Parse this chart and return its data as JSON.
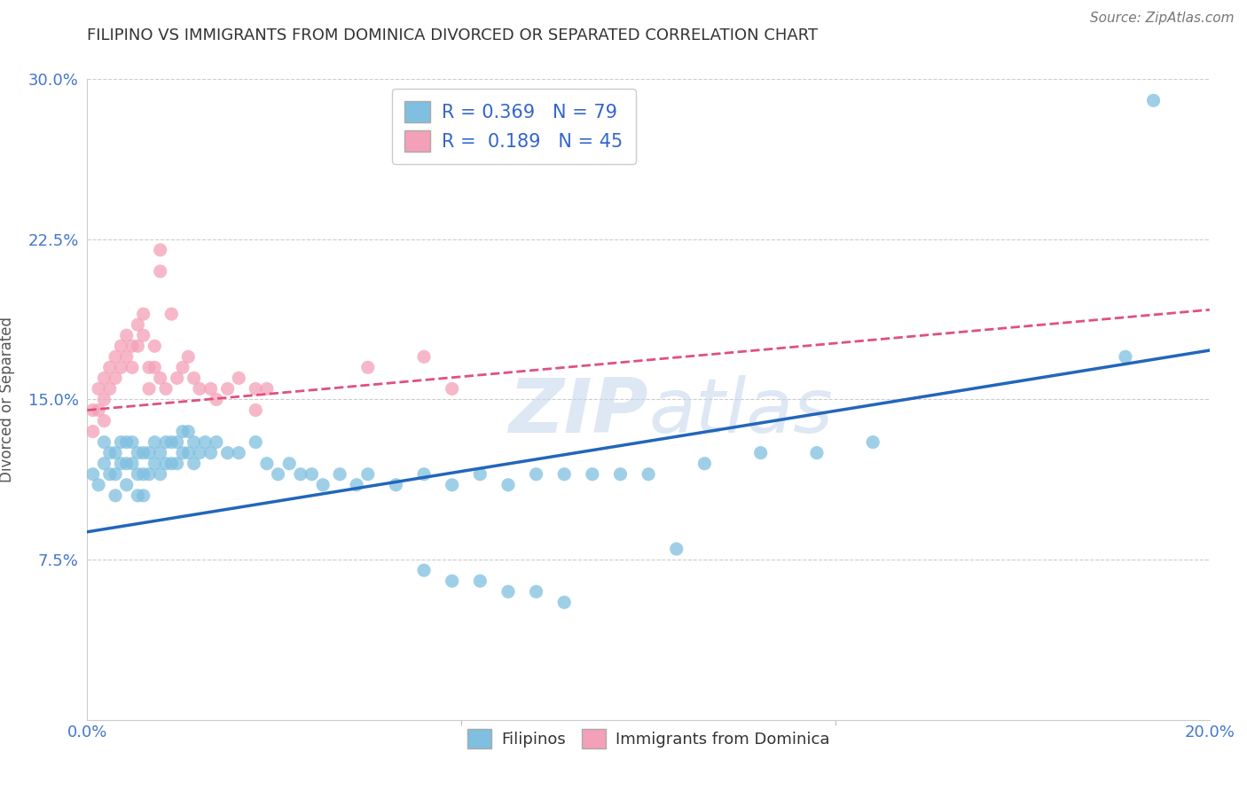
{
  "title": "FILIPINO VS IMMIGRANTS FROM DOMINICA DIVORCED OR SEPARATED CORRELATION CHART",
  "source": "Source: ZipAtlas.com",
  "ylabel": "Divorced or Separated",
  "xlabel_filipino": "Filipinos",
  "xlabel_dominica": "Immigrants from Dominica",
  "xlim": [
    0.0,
    0.2
  ],
  "ylim": [
    0.0,
    0.3
  ],
  "xticks": [
    0.0,
    0.2
  ],
  "xtick_labels": [
    "0.0%",
    "20.0%"
  ],
  "yticks": [
    0.075,
    0.15,
    0.225,
    0.3
  ],
  "ytick_labels": [
    "7.5%",
    "15.0%",
    "22.5%",
    "30.0%"
  ],
  "r_filipino": 0.369,
  "n_filipino": 79,
  "r_dominica": 0.189,
  "n_dominica": 45,
  "filipino_color": "#7fbfdf",
  "dominica_color": "#f4a0b8",
  "trendline_filipino_color": "#2266bb",
  "trendline_dominica_color": "#e05080",
  "watermark_text": "ZIP atlas",
  "watermark_color": "#c8d8ee",
  "background_color": "#ffffff",
  "grid_color": "#cccccc",
  "filipino_scatter_x": [
    0.001,
    0.002,
    0.003,
    0.003,
    0.004,
    0.004,
    0.005,
    0.005,
    0.005,
    0.006,
    0.006,
    0.007,
    0.007,
    0.007,
    0.008,
    0.008,
    0.009,
    0.009,
    0.009,
    0.01,
    0.01,
    0.01,
    0.011,
    0.011,
    0.012,
    0.012,
    0.013,
    0.013,
    0.014,
    0.014,
    0.015,
    0.015,
    0.016,
    0.016,
    0.017,
    0.017,
    0.018,
    0.018,
    0.019,
    0.019,
    0.02,
    0.021,
    0.022,
    0.023,
    0.025,
    0.027,
    0.03,
    0.032,
    0.034,
    0.036,
    0.038,
    0.04,
    0.042,
    0.045,
    0.048,
    0.05,
    0.055,
    0.06,
    0.065,
    0.07,
    0.075,
    0.08,
    0.085,
    0.09,
    0.095,
    0.1,
    0.11,
    0.12,
    0.13,
    0.14,
    0.105,
    0.06,
    0.065,
    0.07,
    0.075,
    0.08,
    0.085,
    0.185,
    0.19
  ],
  "filipino_scatter_y": [
    0.115,
    0.11,
    0.13,
    0.12,
    0.125,
    0.115,
    0.125,
    0.115,
    0.105,
    0.13,
    0.12,
    0.13,
    0.12,
    0.11,
    0.13,
    0.12,
    0.125,
    0.115,
    0.105,
    0.125,
    0.115,
    0.105,
    0.125,
    0.115,
    0.13,
    0.12,
    0.125,
    0.115,
    0.13,
    0.12,
    0.13,
    0.12,
    0.13,
    0.12,
    0.135,
    0.125,
    0.135,
    0.125,
    0.13,
    0.12,
    0.125,
    0.13,
    0.125,
    0.13,
    0.125,
    0.125,
    0.13,
    0.12,
    0.115,
    0.12,
    0.115,
    0.115,
    0.11,
    0.115,
    0.11,
    0.115,
    0.11,
    0.115,
    0.11,
    0.115,
    0.11,
    0.115,
    0.115,
    0.115,
    0.115,
    0.115,
    0.12,
    0.125,
    0.125,
    0.13,
    0.08,
    0.07,
    0.065,
    0.065,
    0.06,
    0.06,
    0.055,
    0.17,
    0.29
  ],
  "dominica_scatter_x": [
    0.001,
    0.001,
    0.002,
    0.002,
    0.003,
    0.003,
    0.003,
    0.004,
    0.004,
    0.005,
    0.005,
    0.006,
    0.006,
    0.007,
    0.007,
    0.008,
    0.008,
    0.009,
    0.009,
    0.01,
    0.01,
    0.011,
    0.011,
    0.012,
    0.012,
    0.013,
    0.013,
    0.013,
    0.014,
    0.015,
    0.016,
    0.017,
    0.018,
    0.019,
    0.02,
    0.022,
    0.023,
    0.025,
    0.027,
    0.03,
    0.03,
    0.032,
    0.05,
    0.06,
    0.065
  ],
  "dominica_scatter_y": [
    0.145,
    0.135,
    0.155,
    0.145,
    0.16,
    0.15,
    0.14,
    0.165,
    0.155,
    0.17,
    0.16,
    0.175,
    0.165,
    0.18,
    0.17,
    0.175,
    0.165,
    0.185,
    0.175,
    0.19,
    0.18,
    0.165,
    0.155,
    0.175,
    0.165,
    0.22,
    0.21,
    0.16,
    0.155,
    0.19,
    0.16,
    0.165,
    0.17,
    0.16,
    0.155,
    0.155,
    0.15,
    0.155,
    0.16,
    0.155,
    0.145,
    0.155,
    0.165,
    0.17,
    0.155
  ],
  "fil_trend_x0": 0.0,
  "fil_trend_y0": 0.088,
  "fil_trend_x1": 0.2,
  "fil_trend_y1": 0.173,
  "dom_trend_x0": 0.0,
  "dom_trend_y0": 0.145,
  "dom_trend_x1": 0.2,
  "dom_trend_y1": 0.192
}
